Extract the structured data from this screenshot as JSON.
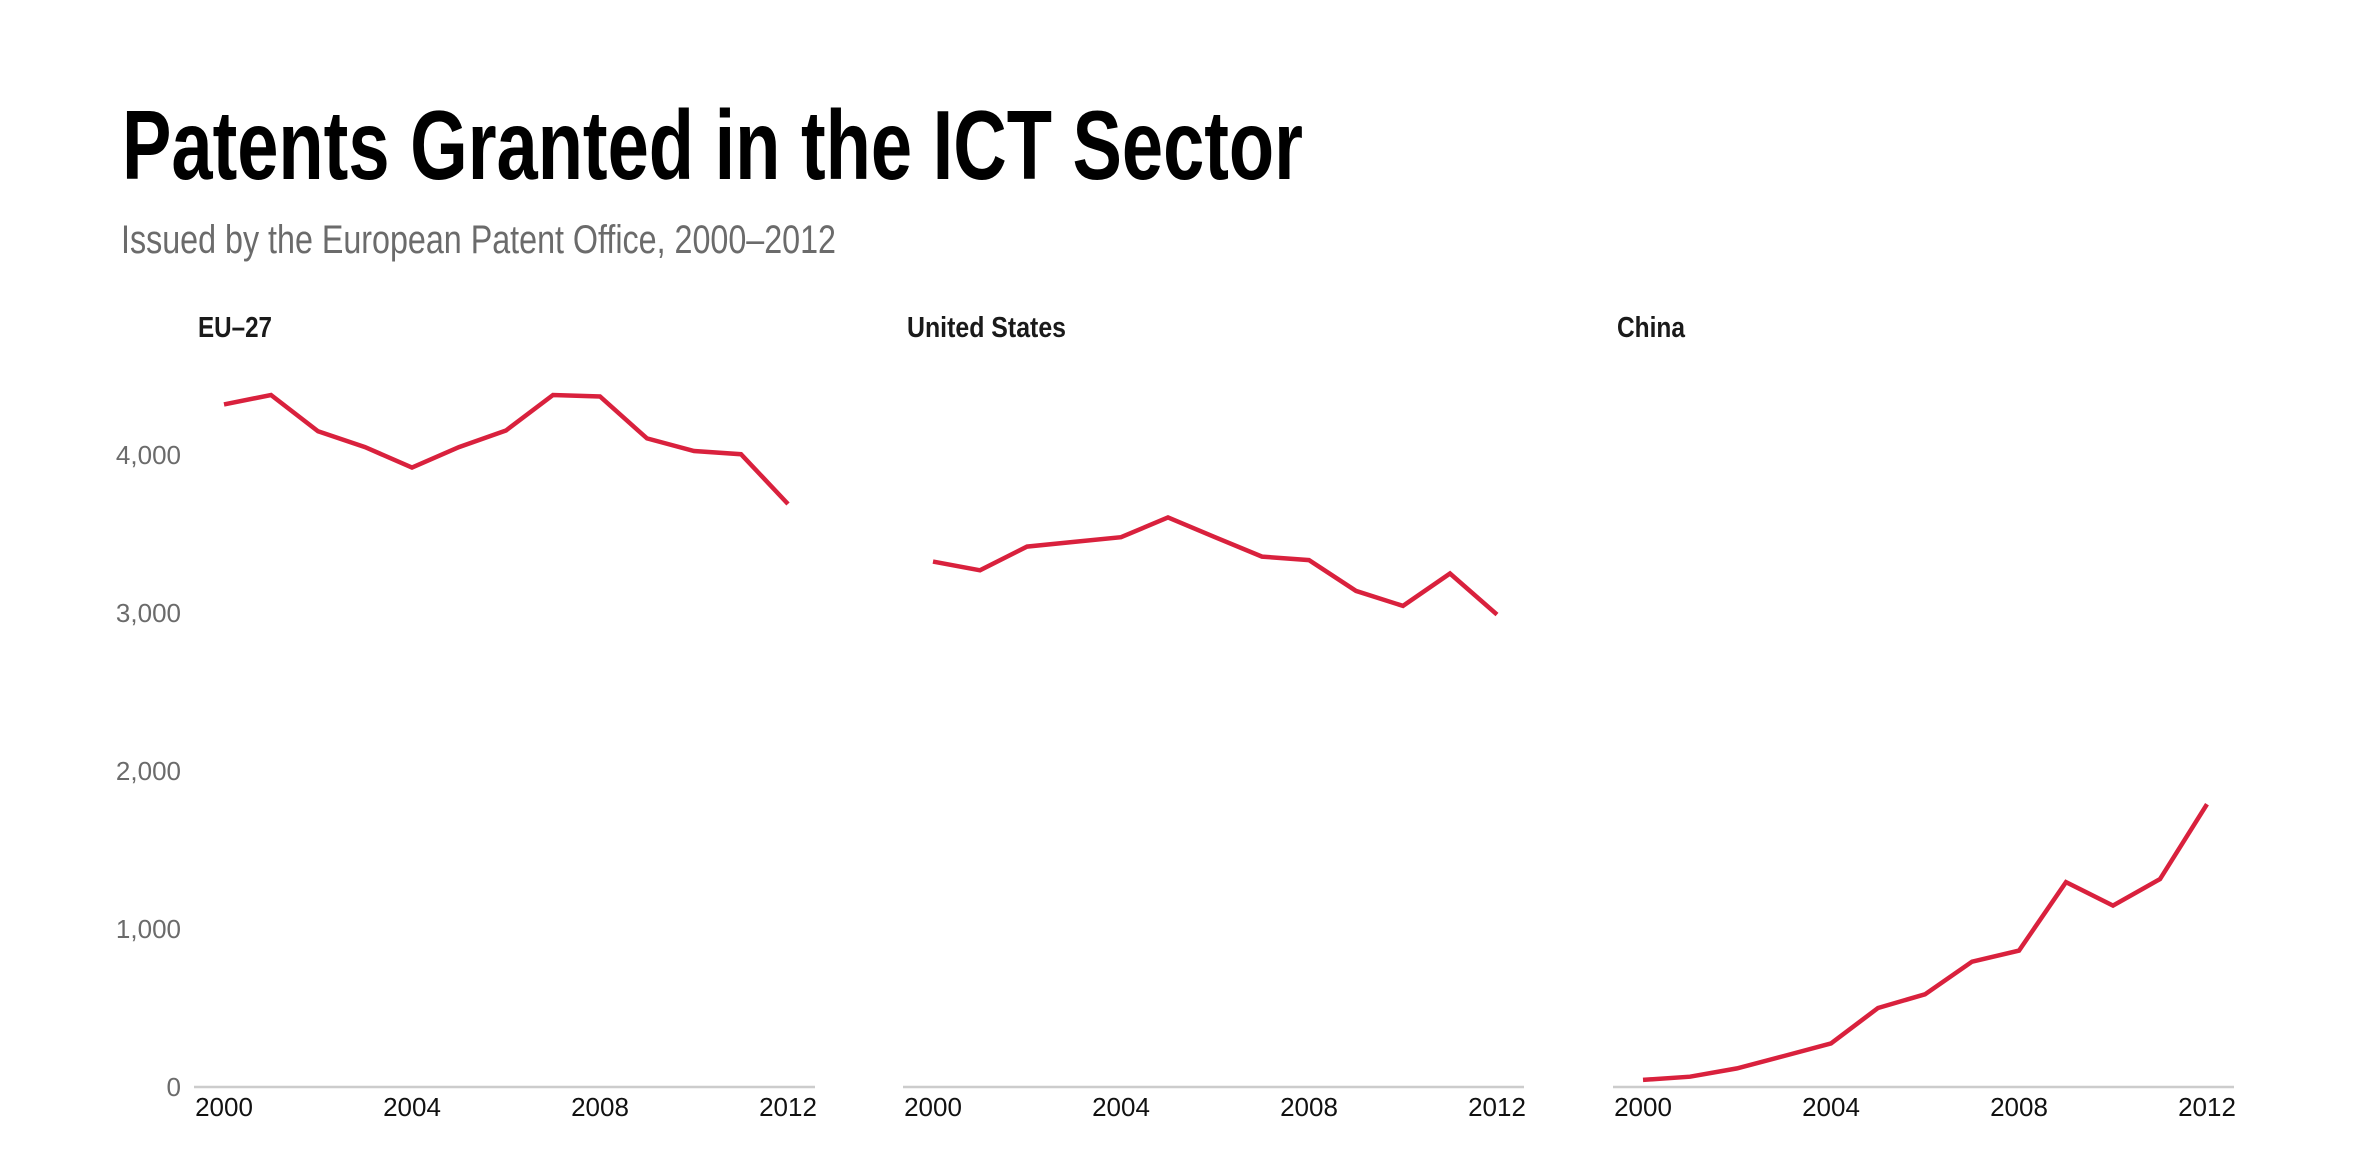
{
  "title": "Patents Granted in the ICT Sector",
  "subtitle": "Issued by the European Patent Office, 2000–2012",
  "chart_data": {
    "type": "line",
    "title": "Patents Granted in the ICT Sector",
    "subtitle": "Issued by the European Patent Office, 2000–2012",
    "layout": "small-multiples",
    "shared_y_axis": true,
    "x": [
      2000,
      2001,
      2002,
      2003,
      2004,
      2005,
      2006,
      2007,
      2008,
      2009,
      2010,
      2011,
      2012
    ],
    "xticks": [
      "2000",
      "2004",
      "2008",
      "2012"
    ],
    "xlim": [
      2000,
      2012
    ],
    "ylim": [
      0,
      4500
    ],
    "yticks": [
      0,
      1000,
      2000,
      3000,
      4000
    ],
    "ytick_labels": [
      "0",
      "1,000",
      "2,000",
      "3,000",
      "4,000"
    ],
    "xlabel": "",
    "ylabel": "",
    "grid": false,
    "legend": "none",
    "line_color": "#d9213d",
    "panels": [
      {
        "name": "EU–27",
        "values": [
          4320,
          4380,
          4150,
          4050,
          3920,
          4050,
          4155,
          4380,
          4370,
          4105,
          4025,
          4005,
          3690
        ]
      },
      {
        "name": "United States",
        "values": [
          3325,
          3270,
          3420,
          3450,
          3480,
          3605,
          3480,
          3357,
          3335,
          3140,
          3045,
          3250,
          2990
        ]
      },
      {
        "name": "China",
        "values": [
          45,
          65,
          118,
          196,
          276,
          500,
          587,
          793,
          863,
          1297,
          1148,
          1316,
          1790
        ]
      }
    ]
  }
}
